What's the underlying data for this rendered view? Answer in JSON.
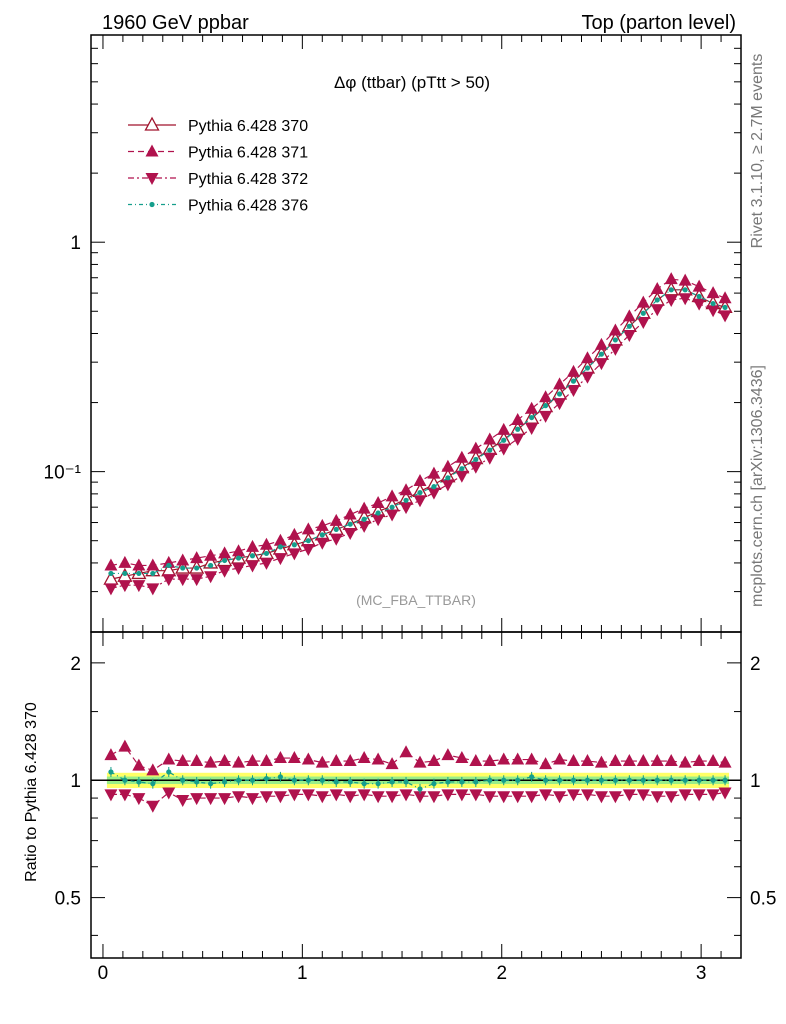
{
  "header": {
    "left": "1960 GeV ppbar",
    "right": "Top (parton level)"
  },
  "side_text": {
    "rivet": "Rivet 3.1.10, ≥ 2.7M events",
    "mcplots": "mcplots.cern.ch [arXiv:1306.3436]"
  },
  "chart_data": [
    {
      "type": "line",
      "title": "Δφ (ttbar) (pTtt > 50)",
      "watermark": "(MC_FBA_TTBAR)",
      "yscale": "log",
      "ylim": [
        0.02,
        8
      ],
      "xlim": [
        -0.06,
        3.2
      ],
      "yticks": [
        {
          "v": 0.1,
          "label": "10⁻¹"
        },
        {
          "v": 1,
          "label": "1"
        }
      ],
      "legend_position": "top-left",
      "x": [
        0.04,
        0.11,
        0.18,
        0.25,
        0.33,
        0.4,
        0.47,
        0.54,
        0.61,
        0.68,
        0.75,
        0.82,
        0.89,
        0.96,
        1.03,
        1.1,
        1.17,
        1.24,
        1.31,
        1.38,
        1.45,
        1.52,
        1.59,
        1.66,
        1.73,
        1.8,
        1.87,
        1.94,
        2.01,
        2.08,
        2.15,
        2.22,
        2.29,
        2.36,
        2.43,
        2.5,
        2.57,
        2.64,
        2.71,
        2.78,
        2.85,
        2.92,
        2.99,
        3.06,
        3.12
      ],
      "series": [
        {
          "name": "Pythia 6.428 370",
          "color": "#a0132c",
          "marker": "triangle-open",
          "dash": "solid",
          "values": [
            0.034,
            0.035,
            0.036,
            0.037,
            0.037,
            0.038,
            0.038,
            0.04,
            0.041,
            0.042,
            0.043,
            0.044,
            0.046,
            0.048,
            0.05,
            0.053,
            0.056,
            0.059,
            0.063,
            0.067,
            0.071,
            0.076,
            0.082,
            0.088,
            0.095,
            0.104,
            0.114,
            0.125,
            0.138,
            0.153,
            0.171,
            0.192,
            0.218,
            0.248,
            0.283,
            0.325,
            0.375,
            0.43,
            0.49,
            0.56,
            0.62,
            0.62,
            0.58,
            0.54,
            0.52
          ]
        },
        {
          "name": "Pythia 6.428 371",
          "color": "#b0124d",
          "marker": "triangle-up",
          "dash": "6,4",
          "values": [
            0.039,
            0.04,
            0.039,
            0.039,
            0.04,
            0.041,
            0.042,
            0.043,
            0.044,
            0.045,
            0.047,
            0.048,
            0.05,
            0.053,
            0.056,
            0.058,
            0.061,
            0.065,
            0.069,
            0.073,
            0.078,
            0.083,
            0.091,
            0.098,
            0.105,
            0.115,
            0.126,
            0.138,
            0.152,
            0.168,
            0.188,
            0.211,
            0.24,
            0.272,
            0.312,
            0.357,
            0.412,
            0.475,
            0.545,
            0.625,
            0.69,
            0.68,
            0.64,
            0.6,
            0.57
          ]
        },
        {
          "name": "Pythia 6.428 372",
          "color": "#b0124d",
          "marker": "triangle-down",
          "dash": "6,3,2,3",
          "values": [
            0.031,
            0.032,
            0.032,
            0.031,
            0.034,
            0.034,
            0.034,
            0.035,
            0.037,
            0.038,
            0.039,
            0.04,
            0.042,
            0.044,
            0.046,
            0.049,
            0.051,
            0.054,
            0.058,
            0.062,
            0.065,
            0.07,
            0.075,
            0.081,
            0.088,
            0.096,
            0.105,
            0.115,
            0.126,
            0.139,
            0.155,
            0.175,
            0.199,
            0.227,
            0.259,
            0.297,
            0.343,
            0.394,
            0.449,
            0.51,
            0.56,
            0.57,
            0.54,
            0.505,
            0.48
          ]
        },
        {
          "name": "Pythia 6.428 376",
          "color": "#159e8c",
          "marker": "dot",
          "dash": "4,3,1,3",
          "values": [
            0.036,
            0.036,
            0.036,
            0.036,
            0.039,
            0.038,
            0.038,
            0.039,
            0.041,
            0.042,
            0.043,
            0.044,
            0.047,
            0.048,
            0.05,
            0.053,
            0.056,
            0.059,
            0.062,
            0.066,
            0.07,
            0.075,
            0.081,
            0.086,
            0.094,
            0.103,
            0.113,
            0.124,
            0.137,
            0.153,
            0.172,
            0.194,
            0.218,
            0.248,
            0.283,
            0.325,
            0.375,
            0.43,
            0.49,
            0.56,
            0.62,
            0.62,
            0.58,
            0.54,
            0.52
          ]
        }
      ]
    },
    {
      "type": "line",
      "ylabel": "Ratio to Pythia 6.428 370",
      "xlim": [
        -0.06,
        3.2
      ],
      "ylim": [
        0.35,
        2.4
      ],
      "yscale": "log",
      "xticks": [
        0,
        1,
        2,
        3
      ],
      "yticks": [
        0.5,
        1,
        2
      ],
      "ytick_labels": [
        "0.5",
        "1",
        "2"
      ],
      "band_colors": [
        "#ffff66",
        "#99ee88"
      ],
      "series": [
        {
          "name": "Pythia 6.428 371",
          "values": [
            1.16,
            1.22,
            1.09,
            1.06,
            1.13,
            1.12,
            1.12,
            1.11,
            1.12,
            1.11,
            1.12,
            1.12,
            1.14,
            1.14,
            1.13,
            1.11,
            1.12,
            1.12,
            1.14,
            1.13,
            1.1,
            1.18,
            1.11,
            1.12,
            1.16,
            1.14,
            1.12,
            1.12,
            1.13,
            1.13,
            1.13,
            1.1,
            1.13,
            1.12,
            1.12,
            1.11,
            1.12,
            1.12,
            1.12,
            1.12,
            1.12,
            1.11,
            1.12,
            1.12,
            1.11
          ]
        },
        {
          "name": "Pythia 6.428 372",
          "values": [
            0.92,
            0.92,
            0.9,
            0.86,
            0.93,
            0.89,
            0.9,
            0.9,
            0.9,
            0.91,
            0.9,
            0.91,
            0.91,
            0.92,
            0.92,
            0.91,
            0.92,
            0.91,
            0.92,
            0.91,
            0.91,
            0.92,
            0.91,
            0.91,
            0.92,
            0.92,
            0.92,
            0.91,
            0.91,
            0.91,
            0.91,
            0.92,
            0.91,
            0.92,
            0.92,
            0.91,
            0.91,
            0.92,
            0.92,
            0.91,
            0.91,
            0.92,
            0.92,
            0.92,
            0.93
          ]
        },
        {
          "name": "Pythia 6.428 376",
          "values": [
            1.05,
            1.0,
            0.99,
            0.98,
            1.05,
            1.0,
            0.99,
            0.98,
            0.99,
            1.0,
            1.0,
            1.01,
            1.02,
            1.0,
            1.0,
            1.0,
            0.99,
            0.99,
            0.98,
            0.98,
            0.99,
            0.99,
            0.95,
            0.98,
            0.99,
            0.99,
            0.99,
            1.0,
            1.0,
            1.0,
            1.02,
            1.0,
            1.0,
            1.0,
            1.0,
            1.0,
            1.0,
            1.0,
            1.0,
            1.0,
            1.0,
            1.0,
            1.0,
            1.0,
            1.0
          ]
        }
      ]
    }
  ]
}
